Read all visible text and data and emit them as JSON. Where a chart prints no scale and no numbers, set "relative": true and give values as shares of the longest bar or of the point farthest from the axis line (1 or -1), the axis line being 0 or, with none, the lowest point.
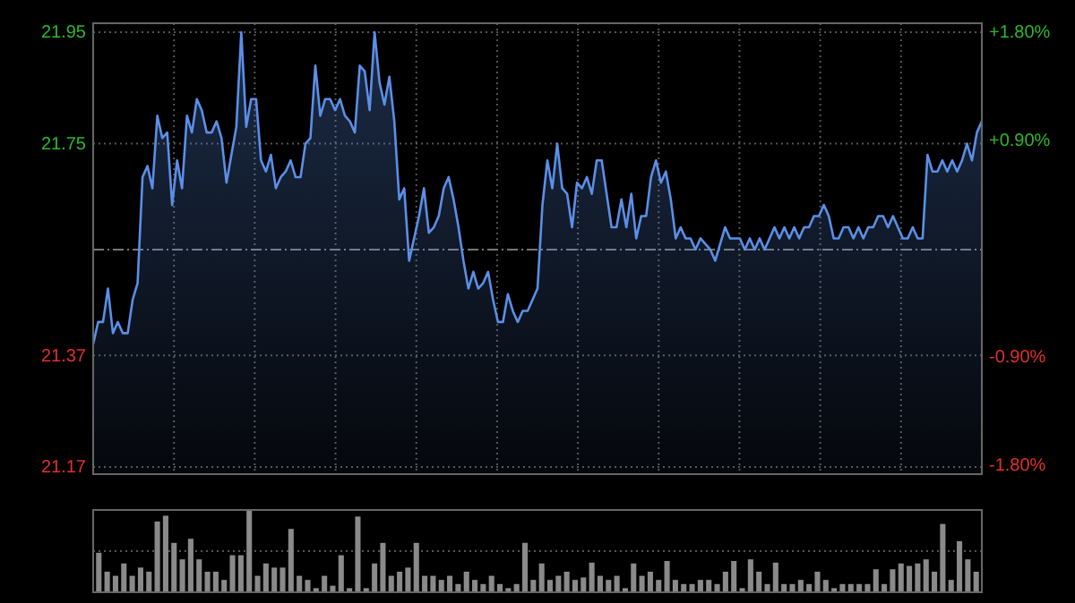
{
  "chart_data": [
    {
      "type": "area",
      "categories": [
        null,
        null,
        null,
        null,
        null,
        null,
        null,
        null,
        null,
        null,
        null,
        null,
        null,
        null,
        null,
        null,
        null,
        null,
        null,
        null,
        null,
        null,
        null,
        null,
        null,
        null,
        null,
        null,
        null,
        null,
        null,
        null,
        null,
        null,
        null,
        null,
        null,
        null,
        null,
        null,
        null,
        null,
        null,
        null,
        null,
        null,
        null,
        null,
        null,
        null,
        null,
        null,
        null,
        null,
        null,
        null,
        null,
        null,
        null,
        null,
        null,
        null,
        null,
        null,
        null,
        null,
        null,
        null,
        null,
        null,
        null,
        null,
        null,
        null,
        null,
        null,
        null,
        null,
        null,
        null,
        null,
        null,
        null,
        null,
        null,
        null,
        null,
        null,
        null,
        null,
        null,
        null,
        null,
        null,
        null,
        null,
        null,
        null,
        null,
        null,
        null,
        null,
        null,
        null,
        null,
        null,
        null,
        null,
        null,
        null,
        null,
        null,
        null,
        null,
        null,
        null,
        null,
        null,
        null,
        null,
        null,
        null,
        null,
        null,
        null,
        null,
        null,
        null,
        null,
        null,
        null,
        null,
        null,
        null,
        null,
        null,
        null,
        null,
        null,
        null,
        null,
        null,
        null,
        null,
        null,
        null,
        null,
        null,
        null,
        null,
        null,
        null,
        null,
        null,
        null,
        null,
        null,
        null,
        null,
        null,
        null,
        null,
        null,
        null,
        null,
        null,
        null,
        null,
        null,
        null,
        null,
        null,
        null,
        null,
        null,
        null,
        null,
        null,
        null,
        null,
        null
      ],
      "series": [
        {
          "color": "#5b8fe8",
          "values": [
            21.39,
            21.43,
            21.43,
            21.49,
            21.41,
            21.43,
            21.41,
            21.41,
            21.47,
            21.5,
            21.69,
            21.71,
            21.67,
            21.8,
            21.76,
            21.77,
            21.64,
            21.72,
            21.67,
            21.8,
            21.77,
            21.83,
            21.81,
            21.77,
            21.77,
            21.79,
            21.76,
            21.68,
            21.73,
            21.78,
            21.95,
            21.78,
            21.83,
            21.83,
            21.72,
            21.7,
            21.73,
            21.67,
            21.69,
            21.7,
            21.72,
            21.69,
            21.69,
            21.75,
            21.76,
            21.89,
            21.8,
            21.83,
            21.83,
            21.81,
            21.83,
            21.8,
            21.79,
            21.77,
            21.89,
            21.88,
            21.81,
            21.95,
            21.86,
            21.82,
            21.87,
            21.79,
            21.65,
            21.67,
            21.54,
            21.58,
            21.62,
            21.67,
            21.59,
            21.6,
            21.62,
            21.67,
            21.69,
            21.65,
            21.6,
            21.54,
            21.49,
            21.52,
            21.49,
            21.5,
            21.52,
            21.47,
            21.43,
            21.43,
            21.48,
            21.45,
            21.43,
            21.45,
            21.45,
            21.47,
            21.49,
            21.64,
            21.72,
            21.67,
            21.75,
            21.67,
            21.66,
            21.6,
            21.68,
            21.67,
            21.69,
            21.66,
            21.72,
            21.72,
            21.66,
            21.6,
            21.6,
            21.65,
            21.6,
            21.66,
            21.58,
            21.62,
            21.62,
            21.69,
            21.72,
            21.68,
            21.7,
            21.65,
            21.58,
            21.6,
            21.58,
            21.58,
            21.56,
            21.58,
            21.57,
            21.56,
            21.54,
            21.57,
            21.6,
            21.58,
            21.58,
            21.58,
            21.56,
            21.58,
            21.56,
            21.58,
            21.56,
            21.58,
            21.6,
            21.58,
            21.6,
            21.58,
            21.6,
            21.58,
            21.6,
            21.6,
            21.62,
            21.62,
            21.64,
            21.62,
            21.58,
            21.58,
            21.6,
            21.6,
            21.58,
            21.6,
            21.58,
            21.6,
            21.6,
            21.62,
            21.62,
            21.6,
            21.62,
            21.6,
            21.58,
            21.58,
            21.6,
            21.58,
            21.58,
            21.73,
            21.7,
            21.7,
            21.72,
            21.7,
            21.72,
            21.7,
            21.72,
            21.75,
            21.72,
            21.77,
            21.79
          ]
        }
      ],
      "ylim": [
        21.157,
        21.966
      ],
      "yticks": [
        21.17,
        21.37,
        21.75,
        21.95
      ],
      "y2lim": [
        -1.88,
        1.87
      ],
      "y2ticks": [
        {
          "value": -1.8,
          "label": "-1.80%"
        },
        {
          "value": -0.9,
          "label": "-0.90%"
        },
        {
          "value": 0.9,
          "label": "+0.90%"
        },
        {
          "value": 1.8,
          "label": "+1.80%"
        }
      ],
      "ref_lines": [
        {
          "axis": "y",
          "value": 21.56,
          "label": null,
          "line_style": "dashed"
        }
      ],
      "grid": true
    },
    {
      "type": "bar",
      "relative": true,
      "ref_lines": [
        {
          "axis": "y",
          "value": 0.5,
          "label": null,
          "line_style": "dotted",
          "color": "#555555"
        }
      ],
      "categories": [
        null,
        null,
        null,
        null,
        null,
        null,
        null,
        null,
        null,
        null,
        null,
        null,
        null,
        null,
        null,
        null,
        null,
        null,
        null,
        null,
        null,
        null,
        null,
        null,
        null,
        null,
        null,
        null,
        null,
        null,
        null,
        null,
        null,
        null,
        null,
        null,
        null,
        null,
        null,
        null,
        null,
        null,
        null,
        null,
        null,
        null,
        null,
        null,
        null,
        null,
        null,
        null,
        null,
        null,
        null,
        null,
        null,
        null,
        null,
        null,
        null,
        null,
        null,
        null,
        null,
        null,
        null,
        null,
        null,
        null,
        null,
        null,
        null,
        null,
        null,
        null,
        null,
        null,
        null,
        null,
        null,
        null,
        null,
        null,
        null,
        null,
        null,
        null,
        null,
        null,
        null,
        null,
        null,
        null,
        null,
        null,
        null,
        null,
        null,
        null,
        null,
        null,
        null,
        null,
        null,
        null
      ],
      "series": [
        {
          "color": "#8a8a8a",
          "values": [
            0.48,
            0.25,
            0.2,
            0.35,
            0.2,
            0.3,
            0.25,
            0.86,
            0.93,
            0.6,
            0.4,
            0.65,
            0.4,
            0.25,
            0.25,
            0.15,
            0.45,
            0.45,
            1.0,
            0.2,
            0.35,
            0.3,
            0.3,
            0.77,
            0.2,
            0.15,
            0.05,
            0.2,
            0.08,
            0.45,
            0.05,
            0.92,
            0.05,
            0.35,
            0.6,
            0.2,
            0.25,
            0.3,
            0.6,
            0.2,
            0.2,
            0.15,
            0.2,
            0.1,
            0.25,
            0.15,
            0.1,
            0.2,
            0.1,
            0.05,
            0.1,
            0.6,
            0.15,
            0.35,
            0.15,
            0.2,
            0.25,
            0.15,
            0.18,
            0.36,
            0.2,
            0.15,
            0.2,
            0.05,
            0.35,
            0.2,
            0.25,
            0.15,
            0.38,
            0.15,
            0.1,
            0.1,
            0.15,
            0.15,
            0.1,
            0.25,
            0.38,
            0.05,
            0.4,
            0.25,
            0.1,
            0.36,
            0.1,
            0.1,
            0.15,
            0.1,
            0.25,
            0.15,
            0.05,
            0.1,
            0.1,
            0.1,
            0.1,
            0.28,
            0.1,
            0.28,
            0.35,
            0.32,
            0.35,
            0.4,
            0.25,
            0.83,
            0.15,
            0.62,
            0.4,
            0.25
          ]
        }
      ]
    }
  ]
}
